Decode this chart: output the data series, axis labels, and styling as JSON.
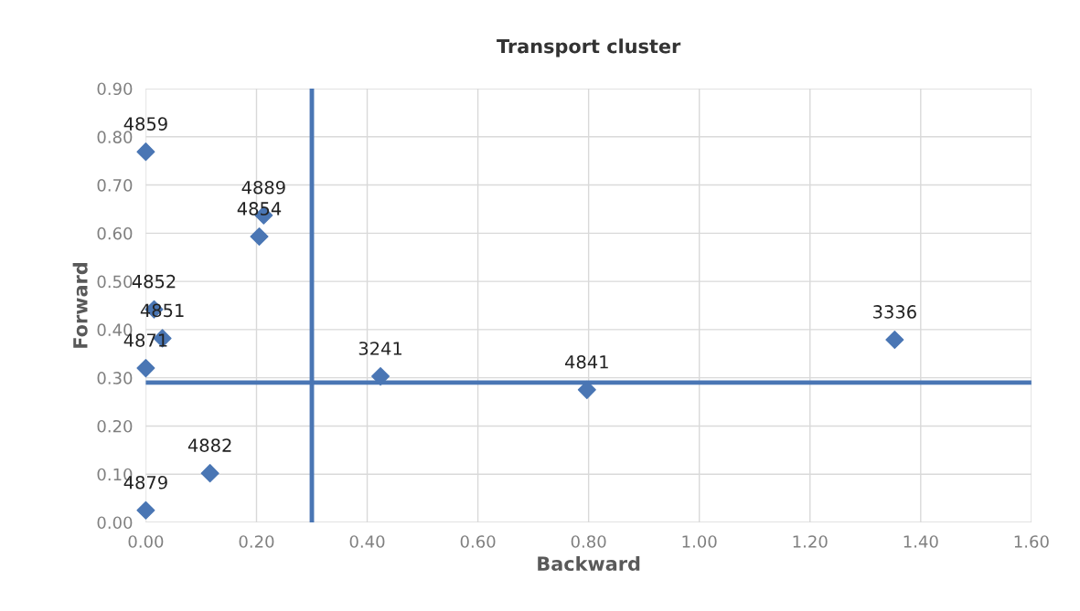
{
  "chart_data": {
    "type": "scatter",
    "title": "Transport cluster",
    "xlabel": "Backward",
    "ylabel": "Forward",
    "x": [
      0.0,
      0.213,
      0.205,
      0.015,
      0.03,
      0.0,
      0.424,
      0.797,
      1.353,
      0.116,
      0.0
    ],
    "series": [
      {
        "color": "#4a76b4",
        "values": [
          0.769,
          0.637,
          0.593,
          0.442,
          0.382,
          0.32,
          0.303,
          0.275,
          0.379,
          0.102,
          0.025
        ]
      }
    ],
    "annotations": [
      {
        "text": "4859",
        "x": 0.0,
        "y": 0.769
      },
      {
        "text": "4889",
        "x": 0.213,
        "y": 0.637
      },
      {
        "text": "4854",
        "x": 0.205,
        "y": 0.593
      },
      {
        "text": "4852",
        "x": 0.015,
        "y": 0.442
      },
      {
        "text": "4851",
        "x": 0.03,
        "y": 0.382
      },
      {
        "text": "4871",
        "x": 0.0,
        "y": 0.32
      },
      {
        "text": "3241",
        "x": 0.424,
        "y": 0.303
      },
      {
        "text": "4841",
        "x": 0.797,
        "y": 0.275
      },
      {
        "text": "3336",
        "x": 1.353,
        "y": 0.379
      },
      {
        "text": "4882",
        "x": 0.116,
        "y": 0.102
      },
      {
        "text": "4879",
        "x": 0.0,
        "y": 0.025
      }
    ],
    "ref_lines": [
      {
        "axis": "y",
        "value": 0.29,
        "color": "#4a76b4"
      },
      {
        "axis": "x",
        "value": 0.3,
        "color": "#4a76b4"
      }
    ],
    "xlim": [
      0,
      1.6
    ],
    "xticks": [
      {
        "value": 0,
        "label": "0.00"
      },
      {
        "value": 0.2,
        "label": "0.20"
      },
      {
        "value": 0.4,
        "label": "0.40"
      },
      {
        "value": 0.6,
        "label": "0.60"
      },
      {
        "value": 0.8,
        "label": "0.80"
      },
      {
        "value": 1.0,
        "label": "1.00"
      },
      {
        "value": 1.2,
        "label": "1.20"
      },
      {
        "value": 1.4,
        "label": "1.40"
      },
      {
        "value": 1.6,
        "label": "1.60"
      }
    ],
    "ylim": [
      0,
      0.9
    ],
    "yticks": [
      {
        "value": 0,
        "label": "0.00"
      },
      {
        "value": 0.1,
        "label": "0.10"
      },
      {
        "value": 0.2,
        "label": "0.20"
      },
      {
        "value": 0.3,
        "label": "0.30"
      },
      {
        "value": 0.4,
        "label": "0.40"
      },
      {
        "value": 0.5,
        "label": "0.50"
      },
      {
        "value": 0.6,
        "label": "0.60"
      },
      {
        "value": 0.7,
        "label": "0.70"
      },
      {
        "value": 0.8,
        "label": "0.80"
      },
      {
        "value": 0.9,
        "label": "0.90"
      }
    ],
    "grid": true,
    "marker": "diamond",
    "legend": false
  }
}
